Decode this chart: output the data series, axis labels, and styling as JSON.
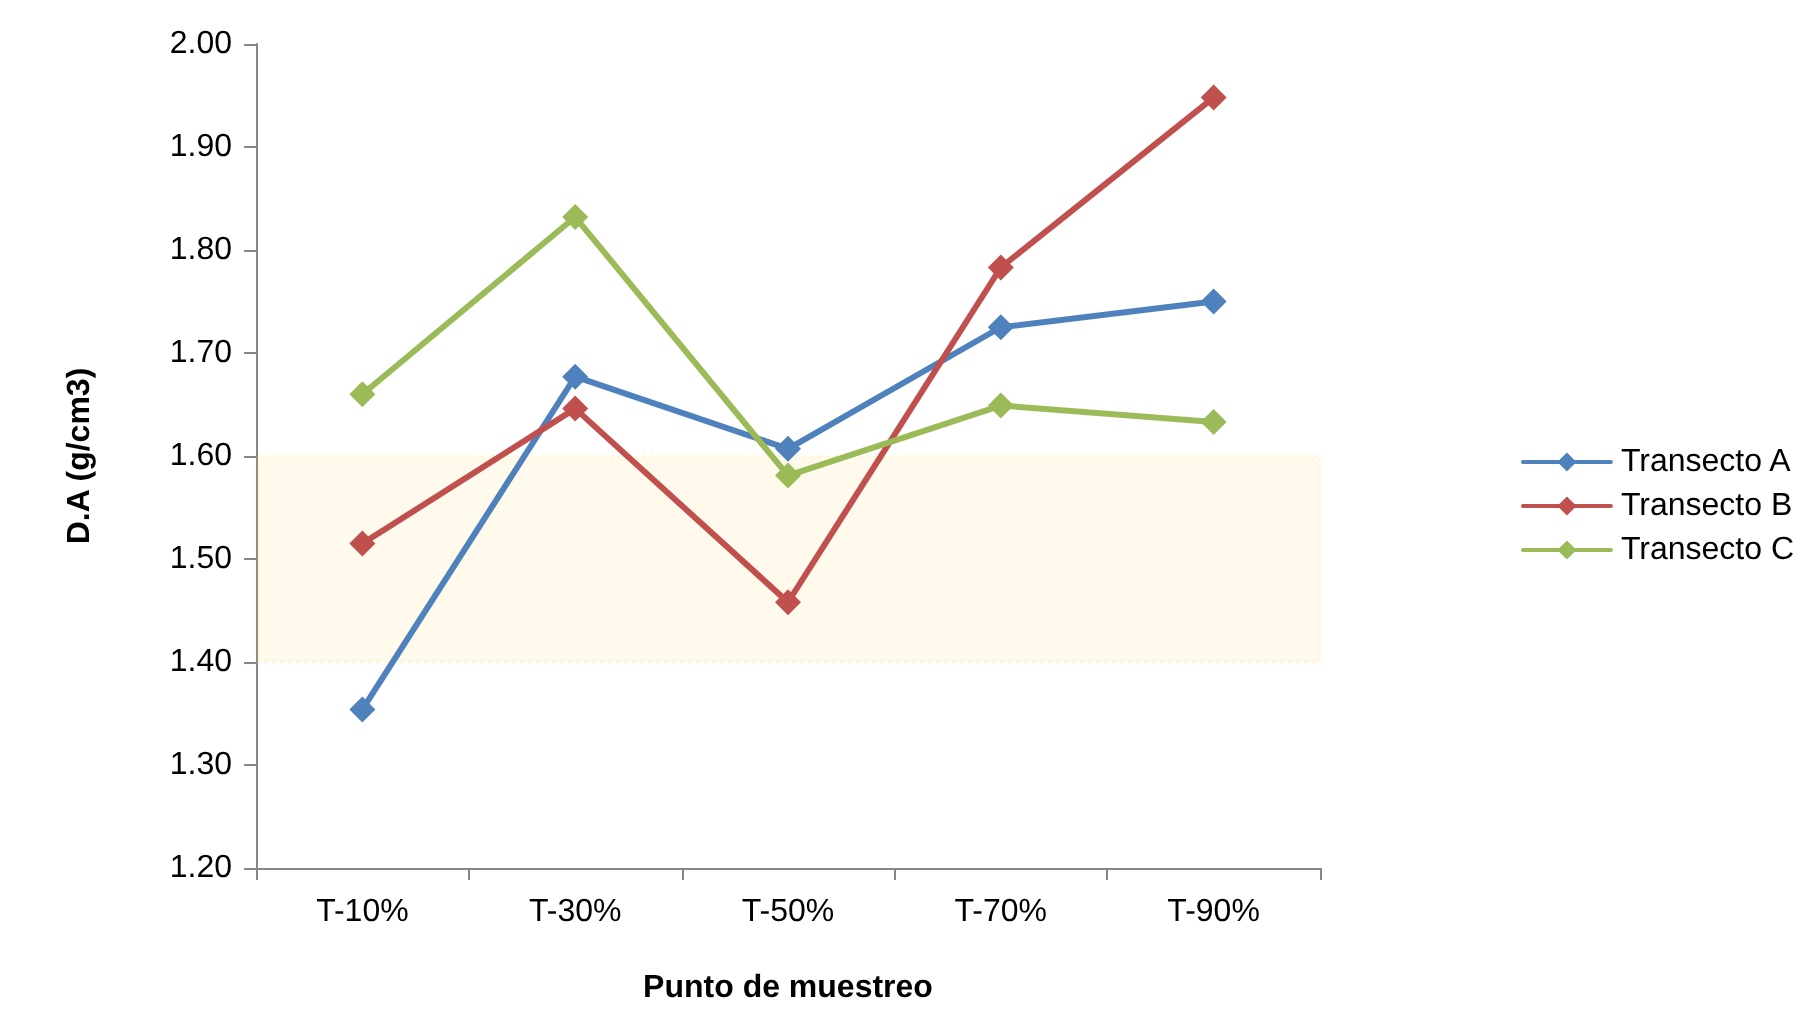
{
  "chart_data": {
    "type": "line",
    "xlabel": "Punto de muestreo",
    "ylabel": "D.A (g/cm3)",
    "categories": [
      "T-10%",
      "T-30%",
      "T-50%",
      "T-70%",
      "T-90%"
    ],
    "series": [
      {
        "name": "Transecto A",
        "color": "#4f81bd",
        "values": [
          1.354,
          1.677,
          1.607,
          1.725,
          1.75
        ]
      },
      {
        "name": "Transecto B",
        "color": "#c0504d",
        "values": [
          1.515,
          1.646,
          1.458,
          1.783,
          1.948
        ]
      },
      {
        "name": "Transecto C",
        "color": "#9bbb59",
        "values": [
          1.66,
          1.832,
          1.581,
          1.649,
          1.633
        ]
      }
    ],
    "ylim": [
      1.2,
      2.0
    ],
    "yticks": [
      {
        "value": 1.2,
        "label": "1.20"
      },
      {
        "value": 1.3,
        "label": "1.30"
      },
      {
        "value": 1.4,
        "label": "1.40"
      },
      {
        "value": 1.5,
        "label": "1.50"
      },
      {
        "value": 1.6,
        "label": "1.60"
      },
      {
        "value": 1.7,
        "label": "1.70"
      },
      {
        "value": 1.8,
        "label": "1.80"
      },
      {
        "value": 1.9,
        "label": "1.90"
      },
      {
        "value": 2.0,
        "label": "2.00"
      }
    ],
    "bands": [
      {
        "axis": "y",
        "from": 1.4,
        "to": 1.6,
        "color": "#ffc000"
      }
    ],
    "grid": false,
    "legend": "right",
    "marker": "diamond",
    "line_style": "solid"
  }
}
